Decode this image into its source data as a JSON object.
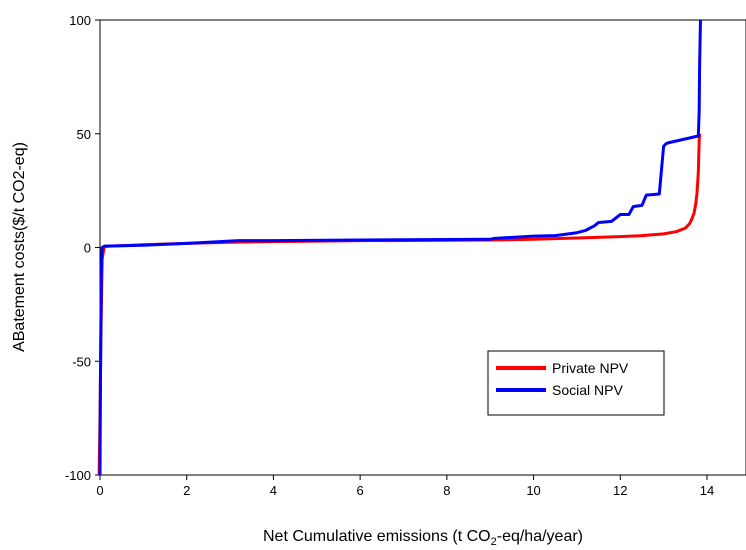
{
  "chart_data": {
    "type": "line",
    "xlabel_main": "Net Cumulative emissions (t CO",
    "xlabel_sub": "2",
    "xlabel_tail": "-eq/ha/year)",
    "ylabel": "ABatement costs($/t CO2-eq)",
    "xlim": [
      0,
      14.9
    ],
    "ylim": [
      -100,
      100
    ],
    "xticks": [
      0,
      2,
      4,
      6,
      8,
      10,
      12,
      14
    ],
    "yticks": [
      -100,
      -50,
      0,
      50,
      100
    ],
    "legend_position": "lower-right",
    "series": [
      {
        "name": "Private NPV",
        "color": "#ff0000",
        "x": [
          -0.02,
          0.0,
          0.02,
          0.05,
          0.1,
          0.5,
          1,
          2,
          3,
          4,
          5,
          6,
          7,
          8,
          9,
          10,
          11,
          12,
          12.5,
          13,
          13.3,
          13.5,
          13.6,
          13.65,
          13.7,
          13.74,
          13.77,
          13.8,
          13.81,
          13.82,
          13.83
        ],
        "y": [
          -100,
          -75,
          -40,
          -5,
          0.5,
          0.8,
          1.2,
          1.8,
          2.3,
          2.6,
          2.8,
          3.0,
          3.1,
          3.2,
          3.3,
          3.6,
          4.2,
          4.8,
          5.2,
          6.0,
          7.0,
          8.5,
          10.5,
          12.5,
          15,
          19,
          24,
          33,
          40,
          47,
          50
        ]
      },
      {
        "name": "Social NPV",
        "color": "#0000ff",
        "x": [
          0.0,
          0.01,
          0.03,
          0.05,
          0.1,
          1,
          2,
          3.2,
          4,
          6,
          8,
          9,
          9.1,
          10,
          10.5,
          11,
          11.2,
          11.4,
          11.5,
          11.8,
          11.9,
          12.0,
          12.2,
          12.3,
          12.5,
          12.6,
          12.9,
          13.0,
          13.05,
          13.1,
          13.8,
          13.82,
          13.83,
          13.85
        ],
        "y": [
          -100,
          -60,
          -10,
          0,
          0.6,
          1.0,
          1.8,
          3.0,
          3.0,
          3.3,
          3.5,
          3.6,
          4.0,
          5.0,
          5.2,
          6.5,
          7.5,
          9.5,
          11,
          11.5,
          13,
          14.5,
          14.5,
          18,
          18.5,
          23,
          23.5,
          44.5,
          45.5,
          46,
          49,
          60,
          80,
          100
        ]
      }
    ]
  }
}
